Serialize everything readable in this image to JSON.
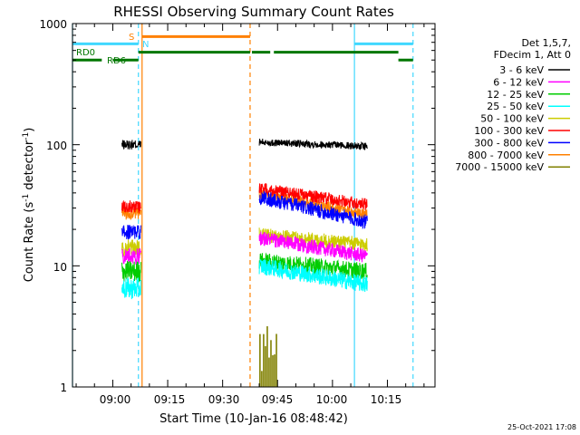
{
  "chart_data": {
    "type": "line",
    "title": "RHESSI Observing Summary Count Rates",
    "xlabel": "Start Time (10-Jan-16 08:48:42)",
    "ylabel_main": "Count Rate (s",
    "ylabel_sup1": "-1",
    "ylabel_mid": " detector",
    "ylabel_sup2": "-1",
    "ylabel_end": ")",
    "yscale": "log",
    "xlim": [
      "08:49",
      "10:28"
    ],
    "ylim": [
      1,
      1000
    ],
    "xticks": [
      "09:00",
      "09:15",
      "09:30",
      "09:45",
      "10:00",
      "10:15"
    ],
    "yticks": [
      "1",
      "10",
      "100",
      "1000"
    ],
    "timestamp": "25-Oct-2021 17:08",
    "legend": {
      "header1": "Det 1,5,7,",
      "header2": "FDecim 1, Att 0",
      "entries": [
        {
          "label": "3 - 6 keV",
          "color": "#000000"
        },
        {
          "label": "6 - 12 keV",
          "color": "#ff00ff"
        },
        {
          "label": "12 - 25 keV",
          "color": "#00cc00"
        },
        {
          "label": "25 - 50 keV",
          "color": "#00ffff"
        },
        {
          "label": "50 - 100 keV",
          "color": "#cccc00"
        },
        {
          "label": "100 - 300 keV",
          "color": "#ff0000"
        },
        {
          "label": "300 - 800 keV",
          "color": "#0000ff"
        },
        {
          "label": "800 - 7000 keV",
          "color": "#ff8000"
        },
        {
          "label": "7000 - 15000 keV",
          "color": "#808000"
        }
      ]
    },
    "flags": [
      {
        "label": "S",
        "color": "#ff8000"
      },
      {
        "label": "N",
        "color": "#40d8ff"
      },
      {
        "label": "RD0",
        "color": "#007700"
      },
      {
        "label": "RD6",
        "color": "#007700"
      }
    ],
    "series": [
      {
        "name": "3 - 6 keV",
        "color": "#000000",
        "segments": [
          {
            "t0": "09:02:30",
            "t1": "09:07:40",
            "y0": 100,
            "y1": 100,
            "noise": 0.04
          },
          {
            "t0": "09:40:00",
            "t1": "10:09:30",
            "y0": 105,
            "y1": 97,
            "noise": 0.03
          }
        ]
      },
      {
        "name": "800 - 7000 keV",
        "color": "#ff8000",
        "segments": [
          {
            "t0": "09:02:30",
            "t1": "09:07:40",
            "y0": 27,
            "y1": 27,
            "noise": 0.05
          },
          {
            "t0": "09:40:00",
            "t1": "10:09:30",
            "y0": 40,
            "y1": 26,
            "noise": 0.05
          }
        ]
      },
      {
        "name": "100 - 300 keV",
        "color": "#ff0000",
        "segments": [
          {
            "t0": "09:02:30",
            "t1": "09:07:40",
            "y0": 31,
            "y1": 31,
            "noise": 0.05
          },
          {
            "t0": "09:40:00",
            "t1": "10:09:30",
            "y0": 44,
            "y1": 32,
            "noise": 0.05
          }
        ]
      },
      {
        "name": "300 - 800 keV",
        "color": "#0000ff",
        "segments": [
          {
            "t0": "09:02:30",
            "t1": "09:07:40",
            "y0": 19,
            "y1": 19,
            "noise": 0.06
          },
          {
            "t0": "09:40:00",
            "t1": "10:09:30",
            "y0": 37,
            "y1": 23,
            "noise": 0.06
          }
        ]
      },
      {
        "name": "50 - 100 keV",
        "color": "#cccc00",
        "segments": [
          {
            "t0": "09:02:30",
            "t1": "09:07:40",
            "y0": 14,
            "y1": 14,
            "noise": 0.07
          },
          {
            "t0": "09:40:00",
            "t1": "10:09:30",
            "y0": 18,
            "y1": 15,
            "noise": 0.06
          }
        ]
      },
      {
        "name": "6 - 12 keV",
        "color": "#ff00ff",
        "segments": [
          {
            "t0": "09:02:30",
            "t1": "09:07:40",
            "y0": 12,
            "y1": 12,
            "noise": 0.07
          },
          {
            "t0": "09:40:00",
            "t1": "10:09:30",
            "y0": 17,
            "y1": 12,
            "noise": 0.06
          }
        ]
      },
      {
        "name": "12 - 25 keV",
        "color": "#00cc00",
        "segments": [
          {
            "t0": "09:02:30",
            "t1": "09:07:40",
            "y0": 9,
            "y1": 9,
            "noise": 0.09
          },
          {
            "t0": "09:40:00",
            "t1": "10:09:30",
            "y0": 11,
            "y1": 9,
            "noise": 0.07
          }
        ]
      },
      {
        "name": "25 - 50 keV",
        "color": "#00ffff",
        "segments": [
          {
            "t0": "09:02:30",
            "t1": "09:07:40",
            "y0": 6.5,
            "y1": 6.5,
            "noise": 0.09
          },
          {
            "t0": "09:40:00",
            "t1": "10:09:30",
            "y0": 10,
            "y1": 7,
            "noise": 0.07
          }
        ]
      },
      {
        "name": "7000 - 15000 keV",
        "color": "#808000",
        "segments": [
          {
            "t0": "09:40:00",
            "t1": "09:45:00",
            "y0": 2,
            "y1": 2,
            "noise": 0.25
          }
        ]
      }
    ],
    "flag_bars": [
      {
        "label": "S",
        "color": "#ff8000",
        "y": 780,
        "intervals": [
          [
            "09:08:00",
            "09:37:30"
          ]
        ]
      },
      {
        "label": "N",
        "color": "#40d8ff",
        "y": 680,
        "intervals": [
          [
            "08:49:00",
            "09:07:00"
          ],
          [
            "10:06:00",
            "10:22:00"
          ]
        ]
      },
      {
        "label": "RD0",
        "color": "#007700",
        "y": 580,
        "intervals": [
          [
            "09:07:00",
            "09:37:30"
          ],
          [
            "09:38:00",
            "09:43:00"
          ],
          [
            "09:44:00",
            "10:18:00"
          ]
        ]
      },
      {
        "label": "RD6",
        "color": "#007700",
        "y": 500,
        "intervals": [
          [
            "08:49:00",
            "08:57:00"
          ],
          [
            "09:00:00",
            "09:07:00"
          ],
          [
            "10:18:00",
            "10:22:00"
          ]
        ]
      }
    ],
    "vlines": [
      {
        "t": "08:49:00",
        "color": "#40d8ff",
        "dashed": false
      },
      {
        "t": "09:07:00",
        "color": "#40d8ff",
        "dashed": true
      },
      {
        "t": "09:08:00",
        "color": "#ff8000",
        "dashed": false
      },
      {
        "t": "09:37:30",
        "color": "#ff8000",
        "dashed": true
      },
      {
        "t": "10:06:00",
        "color": "#40d8ff",
        "dashed": false
      },
      {
        "t": "10:22:00",
        "color": "#40d8ff",
        "dashed": true
      }
    ]
  }
}
